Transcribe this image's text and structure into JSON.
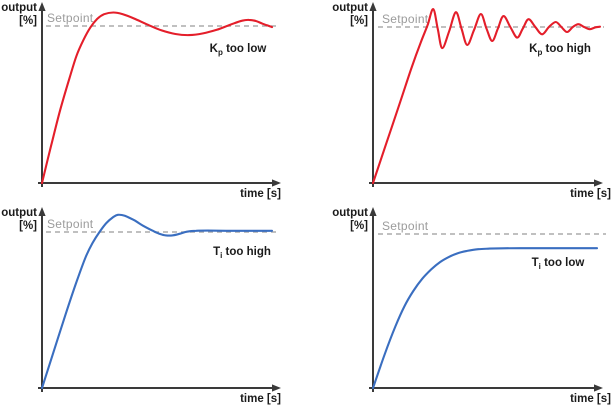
{
  "chart_data": {
    "type": "line",
    "layout": "2x2-grid",
    "axis_ticks": "none",
    "style": {
      "background": "#ffffff",
      "axis_color": "#3a3a3a",
      "label_color": "#1b1b1b",
      "setpoint_text_color": "#9b9b9b",
      "setpoint_line_color": "#ababab",
      "red": "#e41e2a",
      "blue": "#3a6ec0"
    },
    "shared": {
      "ylabel_line1": "output",
      "ylabel_line2": "[%]",
      "xlabel": "time [s]",
      "setpoint_label": "Setpoint",
      "setpoint_value_pct": 100
    },
    "plots": [
      {
        "id": "kp_too_low",
        "position": "top-left",
        "annotation_pre": "K",
        "annotation_sub": "p",
        "annotation_post": " too low",
        "color": "#e41e2a",
        "x_unit": "s",
        "y_unit": "%",
        "points": [
          [
            0,
            0
          ],
          [
            4,
            24
          ],
          [
            8,
            47
          ],
          [
            12,
            67
          ],
          [
            15,
            81
          ],
          [
            18,
            91
          ],
          [
            21,
            99
          ],
          [
            24,
            104.5
          ],
          [
            27,
            107.5
          ],
          [
            31,
            108.6
          ],
          [
            35,
            107.6
          ],
          [
            40,
            104.8
          ],
          [
            46,
            100.8
          ],
          [
            52,
            97.2
          ],
          [
            58,
            94.9
          ],
          [
            64,
            94.2
          ],
          [
            70,
            95.3
          ],
          [
            76,
            97.6
          ],
          [
            82,
            100.9
          ],
          [
            87,
            103.4
          ],
          [
            90,
            103.9
          ],
          [
            93,
            103.2
          ],
          [
            96,
            101.4
          ],
          [
            100,
            99.3
          ]
        ]
      },
      {
        "id": "kp_too_high",
        "position": "top-right",
        "annotation_pre": "K",
        "annotation_sub": "p",
        "annotation_post": " too high",
        "color": "#e41e2a",
        "x_unit": "s",
        "y_unit": "%",
        "points": [
          [
            0,
            0
          ],
          [
            6,
            26
          ],
          [
            12,
            52
          ],
          [
            17,
            74
          ],
          [
            21,
            90
          ],
          [
            24,
            101
          ],
          [
            26.5,
            111.5
          ],
          [
            28.5,
            99
          ],
          [
            30.5,
            86.5
          ],
          [
            33.5,
            97
          ],
          [
            36.5,
            109.5
          ],
          [
            39,
            99
          ],
          [
            41.5,
            88.5
          ],
          [
            44.5,
            98
          ],
          [
            47.5,
            108.3
          ],
          [
            50,
            99
          ],
          [
            52.5,
            91
          ],
          [
            55,
            99
          ],
          [
            57.5,
            107
          ],
          [
            60.5,
            100
          ],
          [
            63.5,
            93.2
          ],
          [
            66,
            99
          ],
          [
            68.5,
            105
          ],
          [
            71.5,
            100
          ],
          [
            74.5,
            95.3
          ],
          [
            77.5,
            100
          ],
          [
            80.5,
            103.2
          ],
          [
            83,
            100
          ],
          [
            85.5,
            96.8
          ],
          [
            88,
            100
          ],
          [
            90.5,
            101.8
          ],
          [
            93,
            100
          ],
          [
            95.5,
            98.6
          ],
          [
            98,
            99.8
          ],
          [
            100,
            100.2
          ]
        ]
      },
      {
        "id": "ti_too_high",
        "position": "bottom-left",
        "annotation_pre": "T",
        "annotation_sub": "i",
        "annotation_post": " too high",
        "color": "#3a6ec0",
        "x_unit": "s",
        "y_unit": "%",
        "points": [
          [
            0,
            0
          ],
          [
            5,
            23
          ],
          [
            10,
            46
          ],
          [
            15,
            68
          ],
          [
            19,
            84
          ],
          [
            22,
            93
          ],
          [
            25,
            100
          ],
          [
            28,
            105.8
          ],
          [
            31,
            109.6
          ],
          [
            33,
            111
          ],
          [
            36,
            110.4
          ],
          [
            40,
            107.6
          ],
          [
            44,
            104
          ],
          [
            48,
            100.9
          ],
          [
            51,
            98.9
          ],
          [
            54,
            97.8
          ],
          [
            57,
            97.9
          ],
          [
            60,
            98.9
          ],
          [
            63,
            100.2
          ],
          [
            67,
            100.8
          ],
          [
            72,
            100.9
          ],
          [
            80,
            100.8
          ],
          [
            90,
            100.8
          ],
          [
            100,
            100.8
          ]
        ]
      },
      {
        "id": "ti_too_low",
        "position": "bottom-right",
        "annotation_pre": "T",
        "annotation_sub": "i",
        "annotation_post": " too low",
        "color": "#3a6ec0",
        "x_unit": "s",
        "y_unit": "%",
        "points": [
          [
            0,
            0
          ],
          [
            5,
            21
          ],
          [
            10,
            40
          ],
          [
            14,
            53
          ],
          [
            18,
            63
          ],
          [
            22,
            71
          ],
          [
            26,
            77
          ],
          [
            30,
            81.8
          ],
          [
            34,
            85.2
          ],
          [
            38,
            87.6
          ],
          [
            42,
            89
          ],
          [
            47,
            90.1
          ],
          [
            52,
            90.5
          ],
          [
            58,
            90.7
          ],
          [
            66,
            90.8
          ],
          [
            75,
            90.8
          ],
          [
            87,
            90.8
          ],
          [
            100,
            90.8
          ]
        ]
      }
    ]
  }
}
